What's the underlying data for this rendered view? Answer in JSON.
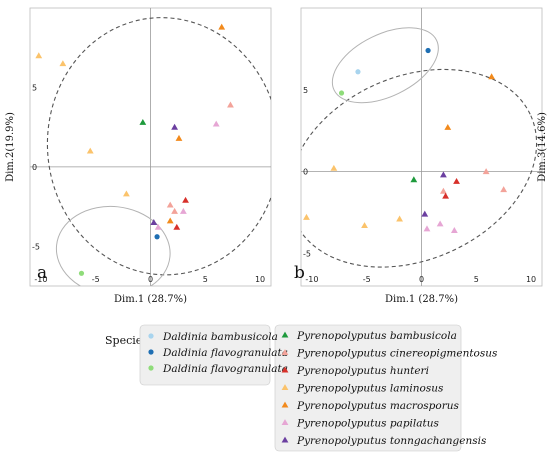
{
  "colors": {
    "daldinia_bambusicola": "#a8d4ee",
    "daldinia_flavogranulata_1": "#1f6fb3",
    "daldinia_flavogranulata_2": "#8fdc7a",
    "pyreno_bambusicola": "#1e9a3c",
    "pyreno_cinereopigmentosus": "#f3a39a",
    "pyreno_hunteri": "#d7302a",
    "pyreno_laminosus": "#fbc36b",
    "pyreno_macrosporus": "#f28a1c",
    "pyreno_papilatus": "#e6a6d4",
    "pyreno_tonngachangensis": "#6b3fa0"
  },
  "chart_data": [
    {
      "panel": "a",
      "type": "scatter",
      "xlabel": "Dim.1 (28.7%)",
      "ylabel": "Dim.2(19.9%)",
      "xlim": [
        -11,
        11
      ],
      "ylim": [
        -7.5,
        10
      ],
      "xticks": [
        -10,
        -5,
        0,
        5,
        10
      ],
      "yticks": [
        -5,
        0,
        5
      ],
      "points": [
        {
          "x": -10.2,
          "y": 7.0,
          "shape": "tri",
          "color": "pyreno_laminosus"
        },
        {
          "x": -8.0,
          "y": 6.5,
          "shape": "tri",
          "color": "pyreno_laminosus"
        },
        {
          "x": -5.5,
          "y": 1.0,
          "shape": "tri",
          "color": "pyreno_laminosus"
        },
        {
          "x": -2.2,
          "y": -1.7,
          "shape": "tri",
          "color": "pyreno_laminosus"
        },
        {
          "x": 6.5,
          "y": 8.8,
          "shape": "tri",
          "color": "pyreno_macrosporus"
        },
        {
          "x": 2.6,
          "y": 1.8,
          "shape": "tri",
          "color": "pyreno_macrosporus"
        },
        {
          "x": 1.8,
          "y": -3.4,
          "shape": "tri",
          "color": "pyreno_macrosporus"
        },
        {
          "x": -0.7,
          "y": 2.8,
          "shape": "tri",
          "color": "pyreno_bambusicola"
        },
        {
          "x": 2.2,
          "y": 2.5,
          "shape": "tri",
          "color": "pyreno_tonngachangensis"
        },
        {
          "x": 0.3,
          "y": -3.5,
          "shape": "tri",
          "color": "pyreno_tonngachangensis"
        },
        {
          "x": 7.3,
          "y": 3.9,
          "shape": "tri",
          "color": "pyreno_cinereopigmentosus"
        },
        {
          "x": 6.0,
          "y": 2.7,
          "shape": "tri",
          "color": "pyreno_papilatus"
        },
        {
          "x": 1.8,
          "y": -2.4,
          "shape": "tri",
          "color": "pyreno_cinereopigmentosus"
        },
        {
          "x": 2.2,
          "y": -2.8,
          "shape": "tri",
          "color": "pyreno_cinereopigmentosus"
        },
        {
          "x": 3.0,
          "y": -2.8,
          "shape": "tri",
          "color": "pyreno_papilatus"
        },
        {
          "x": 3.2,
          "y": -2.1,
          "shape": "tri",
          "color": "pyreno_hunteri"
        },
        {
          "x": 2.4,
          "y": -3.8,
          "shape": "tri",
          "color": "pyreno_hunteri"
        },
        {
          "x": 0.7,
          "y": -3.8,
          "shape": "tri",
          "color": "pyreno_papilatus"
        },
        {
          "x": 0.6,
          "y": -4.4,
          "shape": "circ",
          "color": "daldinia_flavogranulata_1"
        },
        {
          "x": -6.3,
          "y": -6.7,
          "shape": "circ",
          "color": "daldinia_flavogranulata_2"
        }
      ],
      "ellipses": [
        {
          "cx": 1.2,
          "cy": 1.3,
          "rx": 10.6,
          "ry": 8.1,
          "rot": -5,
          "style": "dashed"
        },
        {
          "cx": -3.4,
          "cy": -5.3,
          "rx": 5.2,
          "ry": 2.8,
          "rot": 6,
          "style": "solid"
        }
      ]
    },
    {
      "panel": "b",
      "type": "scatter",
      "xlabel": "Dim.1 (28.7%)",
      "ylabel": "Dim.3(14.6%)",
      "xlim": [
        -11,
        11
      ],
      "ylim": [
        -7,
        10
      ],
      "xticks": [
        -10,
        -5,
        0,
        5,
        10
      ],
      "yticks": [
        -5,
        0,
        5
      ],
      "points": [
        {
          "x": -5.8,
          "y": 6.1,
          "shape": "circ",
          "color": "daldinia_bambusicola"
        },
        {
          "x": -7.3,
          "y": 4.8,
          "shape": "circ",
          "color": "daldinia_flavogranulata_2"
        },
        {
          "x": 0.6,
          "y": 7.4,
          "shape": "circ",
          "color": "daldinia_flavogranulata_1"
        },
        {
          "x": 6.4,
          "y": 5.8,
          "shape": "tri",
          "color": "pyreno_macrosporus"
        },
        {
          "x": 2.4,
          "y": 2.7,
          "shape": "tri",
          "color": "pyreno_macrosporus"
        },
        {
          "x": -8.0,
          "y": 0.2,
          "shape": "tri",
          "color": "pyreno_laminosus"
        },
        {
          "x": -10.5,
          "y": -2.8,
          "shape": "tri",
          "color": "pyreno_laminosus"
        },
        {
          "x": -5.2,
          "y": -3.3,
          "shape": "tri",
          "color": "pyreno_laminosus"
        },
        {
          "x": -2.0,
          "y": -2.9,
          "shape": "tri",
          "color": "pyreno_laminosus"
        },
        {
          "x": -0.7,
          "y": -0.5,
          "shape": "tri",
          "color": "pyreno_bambusicola"
        },
        {
          "x": 2.0,
          "y": -0.2,
          "shape": "tri",
          "color": "pyreno_tonngachangensis"
        },
        {
          "x": 0.3,
          "y": -2.6,
          "shape": "tri",
          "color": "pyreno_tonngachangensis"
        },
        {
          "x": 3.2,
          "y": -0.6,
          "shape": "tri",
          "color": "pyreno_hunteri"
        },
        {
          "x": 2.0,
          "y": -1.2,
          "shape": "tri",
          "color": "pyreno_cinereopigmentosus"
        },
        {
          "x": 2.2,
          "y": -1.5,
          "shape": "tri",
          "color": "pyreno_hunteri"
        },
        {
          "x": 5.9,
          "y": 0.0,
          "shape": "tri",
          "color": "pyreno_cinereopigmentosus"
        },
        {
          "x": 7.5,
          "y": -1.1,
          "shape": "tri",
          "color": "pyreno_cinereopigmentosus"
        },
        {
          "x": 0.5,
          "y": -3.5,
          "shape": "tri",
          "color": "pyreno_papilatus"
        },
        {
          "x": 1.7,
          "y": -3.2,
          "shape": "tri",
          "color": "pyreno_papilatus"
        },
        {
          "x": 3.0,
          "y": -3.6,
          "shape": "tri",
          "color": "pyreno_papilatus"
        }
      ],
      "ellipses": [
        {
          "cx": -0.8,
          "cy": 0.2,
          "rx": 11.8,
          "ry": 5.6,
          "rot": -24,
          "style": "dashed"
        },
        {
          "cx": -3.3,
          "cy": 6.5,
          "rx": 5.2,
          "ry": 1.9,
          "rot": -26,
          "style": "solid"
        }
      ]
    }
  ],
  "legend": {
    "title": "Species",
    "items": [
      {
        "label": "Daldinia bambusicola",
        "shape": "circ",
        "color": "daldinia_bambusicola"
      },
      {
        "label": "Daldinia flavogranulata",
        "shape": "circ",
        "color": "daldinia_flavogranulata_1"
      },
      {
        "label": "Daldinia flavogranulata",
        "shape": "circ",
        "color": "daldinia_flavogranulata_2"
      },
      {
        "label": "Pyrenopolyputus bambusicola",
        "shape": "tri",
        "color": "pyreno_bambusicola"
      },
      {
        "label": "Pyrenopolyputus cinereopigmentosus",
        "shape": "tri",
        "color": "pyreno_cinereopigmentosus"
      },
      {
        "label": "Pyrenopolyputus hunteri",
        "shape": "tri",
        "color": "pyreno_hunteri"
      },
      {
        "label": "Pyrenopolyputus laminosus",
        "shape": "tri",
        "color": "pyreno_laminosus"
      },
      {
        "label": "Pyrenopolyputus macrosporus",
        "shape": "tri",
        "color": "pyreno_macrosporus"
      },
      {
        "label": "Pyrenopolyputus papilatus",
        "shape": "tri",
        "color": "pyreno_papilatus"
      },
      {
        "label": "Pyrenopolyputus tonngachangensis",
        "shape": "tri",
        "color": "pyreno_tonngachangensis"
      }
    ]
  }
}
